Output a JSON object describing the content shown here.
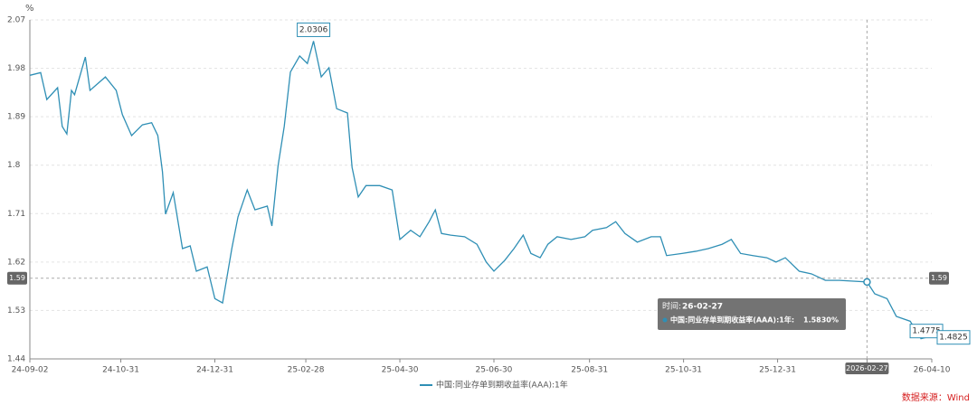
{
  "chart_data": {
    "type": "line",
    "y_unit": "%",
    "x": [
      "24-09-02",
      "24-09-09",
      "24-09-13",
      "24-09-20",
      "24-09-23",
      "24-09-26",
      "24-09-29",
      "24-10-01",
      "24-10-08",
      "24-10-11",
      "24-10-21",
      "24-10-28",
      "24-11-01",
      "24-11-07",
      "24-11-14",
      "24-11-20",
      "24-11-24",
      "24-11-27",
      "24-11-29",
      "24-12-04",
      "24-12-10",
      "24-12-15",
      "24-12-19",
      "24-12-26",
      "24-12-31",
      "25-01-05",
      "25-01-11",
      "25-01-15",
      "25-01-21",
      "25-01-26",
      "25-02-03",
      "25-02-06",
      "25-02-10",
      "25-02-14",
      "25-02-18",
      "25-02-24",
      "25-03-01",
      "25-03-05",
      "25-03-10",
      "25-03-15",
      "25-03-20",
      "25-03-27",
      "25-03-30",
      "25-04-03",
      "25-04-08",
      "25-04-17",
      "25-04-25",
      "25-04-30",
      "25-05-07",
      "25-05-13",
      "25-05-19",
      "25-05-23",
      "25-05-27",
      "25-06-02",
      "25-06-11",
      "25-06-19",
      "25-06-25",
      "25-06-30",
      "25-07-07",
      "25-07-13",
      "25-07-19",
      "25-07-24",
      "25-07-30",
      "25-08-04",
      "25-08-10",
      "25-08-19",
      "25-08-28",
      "25-09-02",
      "25-09-11",
      "25-09-17",
      "25-09-23",
      "25-10-01",
      "25-10-10",
      "25-10-16",
      "25-10-20",
      "25-10-30",
      "25-11-08",
      "25-11-16",
      "25-11-25",
      "25-12-01",
      "25-12-07",
      "25-12-15",
      "25-12-24",
      "25-12-30",
      "26-01-05",
      "26-01-14",
      "26-01-22",
      "26-01-31",
      "26-02-09",
      "26-02-27",
      "26-03-04",
      "26-03-12",
      "26-03-18",
      "26-03-27",
      "26-04-03",
      "26-04-10"
    ],
    "series": [
      {
        "name": "中国:同业存单到期收益率(AAA):1年",
        "color": "#2f8fb5",
        "values": [
          1.967,
          1.972,
          1.922,
          1.944,
          1.872,
          1.858,
          1.939,
          1.931,
          2.001,
          1.939,
          1.964,
          1.939,
          1.894,
          1.855,
          1.875,
          1.879,
          1.855,
          1.788,
          1.709,
          1.749,
          1.645,
          1.65,
          1.603,
          1.611,
          1.552,
          1.544,
          1.645,
          1.704,
          1.754,
          1.717,
          1.724,
          1.687,
          1.799,
          1.872,
          1.973,
          2.003,
          1.989,
          2.0306,
          1.964,
          1.981,
          1.905,
          1.897,
          1.796,
          1.741,
          1.762,
          1.762,
          1.754,
          1.662,
          1.679,
          1.667,
          1.695,
          1.717,
          1.673,
          1.67,
          1.667,
          1.653,
          1.62,
          1.603,
          1.623,
          1.645,
          1.67,
          1.636,
          1.628,
          1.653,
          1.667,
          1.662,
          1.667,
          1.679,
          1.684,
          1.695,
          1.673,
          1.657,
          1.667,
          1.667,
          1.632,
          1.636,
          1.64,
          1.645,
          1.653,
          1.662,
          1.636,
          1.632,
          1.628,
          1.62,
          1.628,
          1.603,
          1.598,
          1.586,
          1.586,
          1.583,
          1.561,
          1.552,
          1.519,
          1.51,
          1.4775,
          1.4825
        ]
      }
    ],
    "ylim": [
      1.44,
      2.07
    ],
    "yticks": [
      1.44,
      1.53,
      1.62,
      1.71,
      1.8,
      1.89,
      1.98,
      2.07
    ],
    "xlim": [
      "24-09-02",
      "26-04-10"
    ],
    "xticks": [
      "24-09-02",
      "24-10-31",
      "24-12-31",
      "25-02-28",
      "25-04-30",
      "25-06-30",
      "25-08-31",
      "25-10-31",
      "25-12-31",
      "26-02-27",
      "26-04-10"
    ],
    "grid": true,
    "annotations": [
      {
        "x": "25-03-05",
        "value": 2.0306,
        "label": "2.0306"
      },
      {
        "x": "26-04-03",
        "value": 1.4775,
        "label": "1.4775"
      },
      {
        "x": "26-04-10",
        "value": 1.4825,
        "label": "1.4825"
      }
    ],
    "crosshair": {
      "x": "26-02-27",
      "x_label": "2026-02-27",
      "value": 1.59,
      "label": "1.59"
    },
    "tooltip": {
      "time_label": "时间:",
      "time": "26-02-27",
      "series": "中国:同业存单到期收益率(AAA):1年:",
      "value": 1.583,
      "value_label": "1.5830",
      "unit": "%"
    },
    "source": "数据来源：Wind"
  }
}
